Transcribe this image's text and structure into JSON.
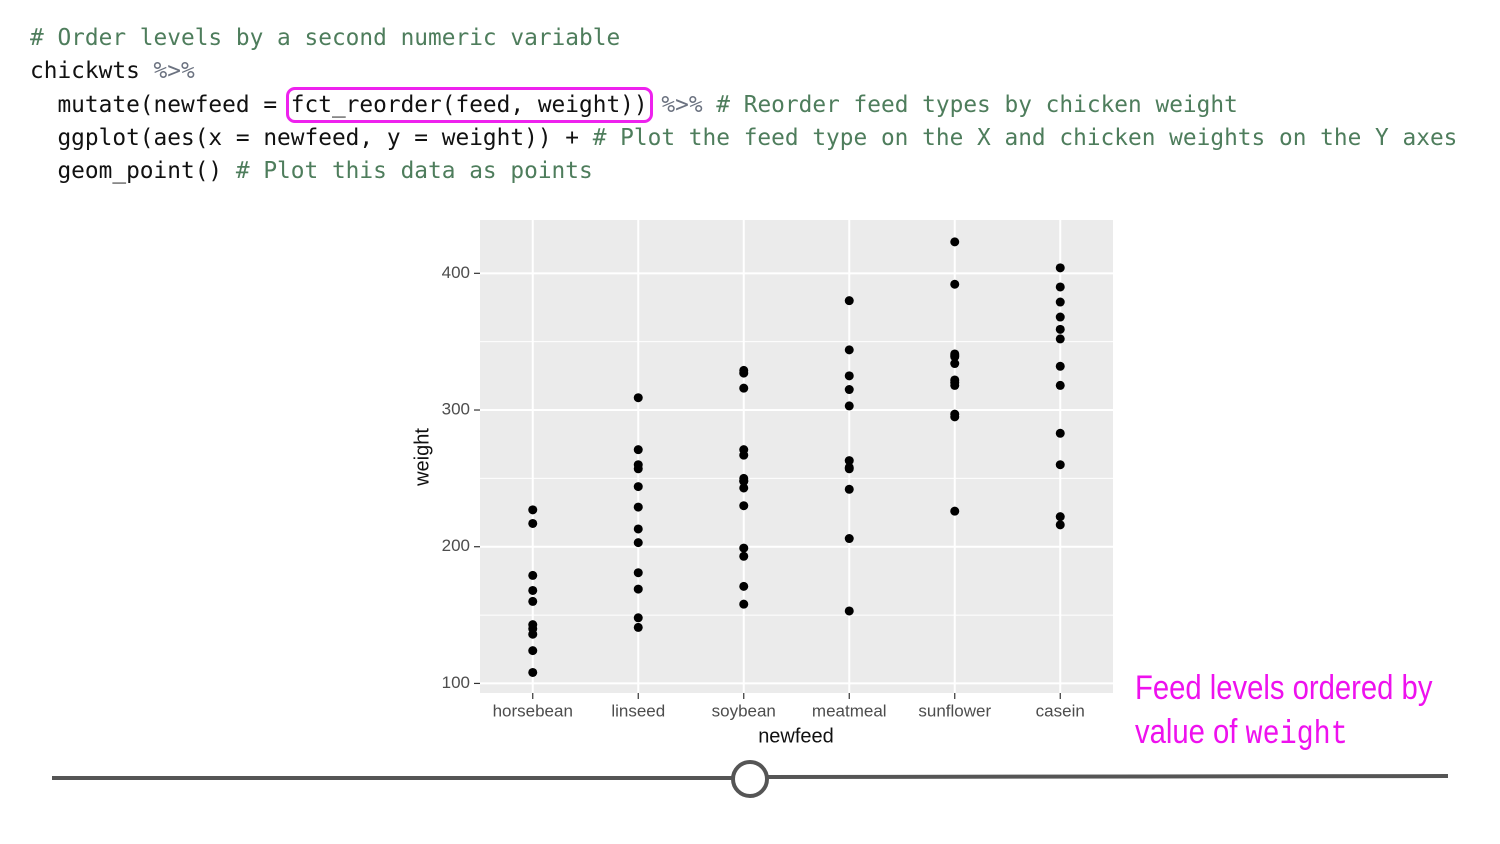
{
  "code": {
    "lines": [
      [
        {
          "text": "# Order levels by a second numeric variable",
          "color": "#4e7d5c"
        }
      ],
      [
        {
          "text": "chickwts",
          "color": "#111111"
        },
        {
          "text": " %>%",
          "color": "#6b7280"
        }
      ],
      [
        {
          "text": "  mutate(newfeed = ",
          "color": "#111111"
        },
        {
          "text": "fct_reorder(feed, weight))",
          "color": "#111111",
          "highlight": "#ee22ee"
        },
        {
          "text": " %>%",
          "color": "#6b7280"
        },
        {
          "text": " # Reorder feed types by chicken weight",
          "color": "#4e7d5c"
        }
      ],
      [
        {
          "text": "  ggplot(aes(x = newfeed, y = weight)) +",
          "color": "#111111"
        },
        {
          "text": " # Plot the feed type on the X and chicken weights on the Y axes",
          "color": "#4e7d5c"
        }
      ],
      [
        {
          "text": "  geom_point()",
          "color": "#111111"
        },
        {
          "text": " # Plot this data as points",
          "color": "#4e7d5c"
        }
      ]
    ]
  },
  "chart_data": {
    "type": "scatter",
    "x_label": "newfeed",
    "y_label": "weight",
    "categories": [
      "horsebean",
      "linseed",
      "soybean",
      "meatmeal",
      "sunflower",
      "casein"
    ],
    "values": [
      [
        179,
        160,
        136,
        227,
        217,
        168,
        108,
        124,
        143,
        140
      ],
      [
        309,
        229,
        181,
        141,
        260,
        203,
        148,
        169,
        213,
        257,
        244,
        271
      ],
      [
        243,
        230,
        248,
        327,
        329,
        250,
        193,
        271,
        316,
        267,
        199,
        171,
        158,
        248
      ],
      [
        325,
        257,
        303,
        315,
        380,
        153,
        263,
        242,
        206,
        344,
        258
      ],
      [
        423,
        340,
        392,
        339,
        341,
        226,
        320,
        295,
        334,
        322,
        297,
        318
      ],
      [
        368,
        390,
        379,
        260,
        404,
        318,
        352,
        359,
        216,
        222,
        283,
        332
      ]
    ],
    "color": "#000000",
    "ylim": [
      93,
      439
    ],
    "yticks": [
      100,
      200,
      300,
      400
    ],
    "grid": true
  },
  "annotation": {
    "line1": "Feed levels ordered by",
    "line2": "value of",
    "code": "weight",
    "color": "#ee11ee"
  }
}
